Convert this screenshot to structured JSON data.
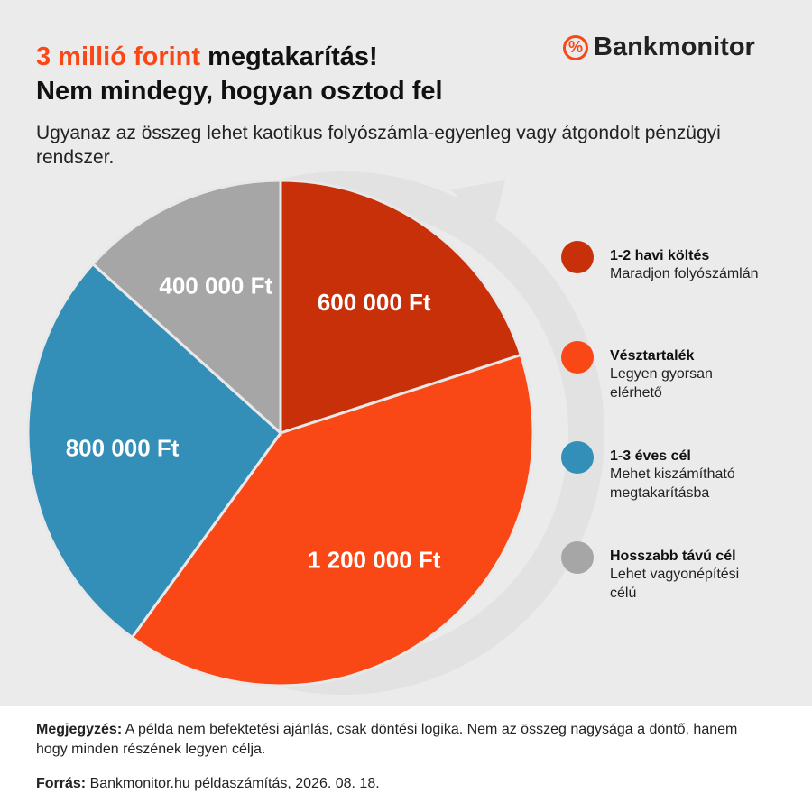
{
  "header": {
    "title_highlight": "3 millió forint",
    "title_rest": "megtakarítás!",
    "title_line2": "Nem mindegy, hogyan osztod fel",
    "subtitle": "Ugyanaz az összeg lehet kaotikus folyószámla-egyenleg vagy átgondolt pénzügyi rendszer.",
    "logo": "Bankmonitor"
  },
  "chart_data": {
    "type": "pie",
    "categories": [
      "1-2 havi költés",
      "Vésztartalék",
      "1-3 éves cél",
      "Hosszabb távú cél"
    ],
    "descriptions": [
      "Maradjon folyószámlán",
      "Legyen gyorsan elérhető",
      "Mehet kiszámítható megtakarításba",
      "Lehet vagyonépítési célú"
    ],
    "values": [
      600000,
      1200000,
      800000,
      400000
    ],
    "value_labels": [
      "600 000 Ft",
      "1 200 000 Ft",
      "800 000 Ft",
      "400 000 Ft"
    ],
    "colors": [
      "#c8300a",
      "#f94816",
      "#338fb8",
      "#a6a6a6"
    ]
  },
  "footer": {
    "note_label": "Megjegyzés:",
    "note": "A példa nem befektetési ajánlás, csak döntési logika. Nem az összeg nagysága a döntő, hanem hogy minden részének legyen célja.",
    "source_label": "Forrás:",
    "source": "Bankmonitor.hu példaszámítás, 2026. 08. 18."
  }
}
